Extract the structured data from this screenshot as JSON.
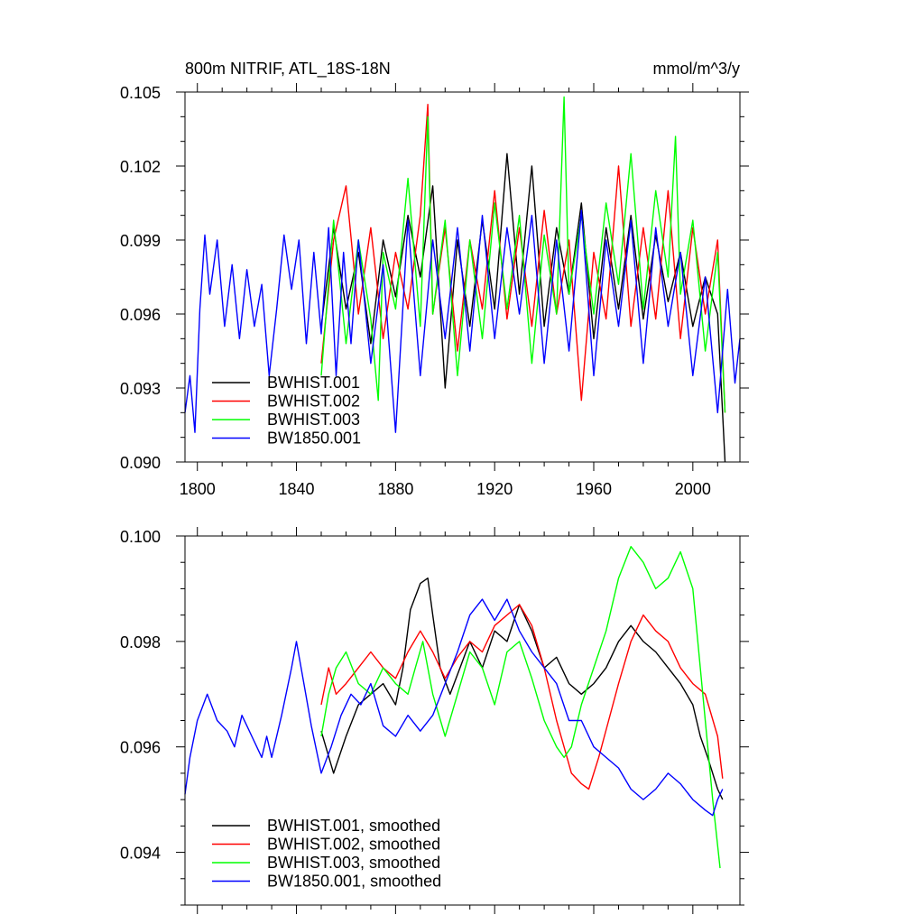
{
  "chart_data": [
    {
      "type": "line",
      "title": "800m NITRIF, ATL_18S-18N",
      "units": "mmol/m^3/y",
      "xlabel": "",
      "ylabel": "",
      "xlim": [
        1795,
        2019
      ],
      "ylim": [
        0.09,
        0.105
      ],
      "x_ticks": [
        "1800",
        "1840",
        "1880",
        "1920",
        "1960",
        "2000"
      ],
      "y_ticks": [
        "0.090",
        "0.093",
        "0.096",
        "0.099",
        "0.102",
        "0.105"
      ],
      "legend_position": "bottom-left",
      "series": [
        {
          "name": "BWHIST.001",
          "color": "#000000",
          "x": [
            1850,
            1855,
            1860,
            1865,
            1870,
            1875,
            1880,
            1885,
            1890,
            1895,
            1900,
            1905,
            1910,
            1915,
            1920,
            1925,
            1930,
            1935,
            1940,
            1945,
            1950,
            1955,
            1960,
            1965,
            1970,
            1975,
            1980,
            1985,
            1990,
            1995,
            2000,
            2005,
            2010,
            2013
          ],
          "values": [
            0.0955,
            0.0995,
            0.0962,
            0.0985,
            0.0948,
            0.099,
            0.0967,
            0.1,
            0.0975,
            0.1012,
            0.093,
            0.099,
            0.0955,
            0.0998,
            0.0962,
            0.1025,
            0.0968,
            0.102,
            0.0955,
            0.0995,
            0.0968,
            0.1005,
            0.095,
            0.0995,
            0.0962,
            0.1,
            0.0958,
            0.0992,
            0.0965,
            0.0985,
            0.0955,
            0.0975,
            0.096,
            0.09
          ]
        },
        {
          "name": "BWHIST.002",
          "color": "#ff0000",
          "x": [
            1850,
            1855,
            1860,
            1865,
            1870,
            1875,
            1880,
            1885,
            1890,
            1893,
            1895,
            1900,
            1905,
            1910,
            1915,
            1920,
            1925,
            1930,
            1935,
            1940,
            1945,
            1950,
            1955,
            1960,
            1965,
            1970,
            1975,
            1980,
            1985,
            1990,
            1995,
            2000,
            2005,
            2010,
            2013
          ],
          "values": [
            0.094,
            0.099,
            0.1012,
            0.096,
            0.0995,
            0.095,
            0.0985,
            0.0962,
            0.1,
            0.1045,
            0.096,
            0.0995,
            0.0945,
            0.099,
            0.0962,
            0.101,
            0.0958,
            0.0995,
            0.0955,
            0.1002,
            0.096,
            0.099,
            0.0925,
            0.0985,
            0.0958,
            0.102,
            0.0955,
            0.0995,
            0.0958,
            0.101,
            0.095,
            0.0995,
            0.096,
            0.099,
            0.092
          ]
        },
        {
          "name": "BWHIST.003",
          "color": "#00ff00",
          "x": [
            1850,
            1855,
            1860,
            1865,
            1870,
            1873,
            1875,
            1880,
            1885,
            1890,
            1893,
            1895,
            1900,
            1905,
            1910,
            1915,
            1920,
            1925,
            1930,
            1935,
            1940,
            1945,
            1948,
            1950,
            1955,
            1960,
            1965,
            1970,
            1975,
            1980,
            1985,
            1990,
            1993,
            1995,
            2000,
            2005,
            2010,
            2013
          ],
          "values": [
            0.0935,
            0.0998,
            0.0948,
            0.099,
            0.0958,
            0.0925,
            0.0985,
            0.0962,
            0.1015,
            0.0955,
            0.104,
            0.096,
            0.0998,
            0.0935,
            0.099,
            0.095,
            0.1005,
            0.0962,
            0.1,
            0.094,
            0.0992,
            0.096,
            0.1048,
            0.0968,
            0.1,
            0.096,
            0.1005,
            0.0972,
            0.1025,
            0.0962,
            0.101,
            0.0975,
            0.1032,
            0.0968,
            0.0998,
            0.0945,
            0.0985,
            0.092
          ]
        },
        {
          "name": "BW1850.001",
          "color": "#0000ff",
          "x": [
            1795,
            1797,
            1799,
            1801,
            1803,
            1805,
            1808,
            1811,
            1814,
            1817,
            1820,
            1823,
            1826,
            1829,
            1832,
            1835,
            1838,
            1841,
            1844,
            1847,
            1850,
            1853,
            1856,
            1859,
            1862,
            1865,
            1870,
            1875,
            1880,
            1885,
            1890,
            1895,
            1900,
            1905,
            1910,
            1915,
            1920,
            1925,
            1930,
            1935,
            1940,
            1945,
            1950,
            1955,
            1960,
            1965,
            1970,
            1975,
            1980,
            1985,
            1990,
            1995,
            2000,
            2005,
            2010,
            2014,
            2017,
            2019
          ],
          "values": [
            0.092,
            0.0935,
            0.0912,
            0.0962,
            0.0992,
            0.0968,
            0.099,
            0.0955,
            0.098,
            0.095,
            0.0978,
            0.0955,
            0.0972,
            0.0935,
            0.0962,
            0.0992,
            0.097,
            0.099,
            0.0948,
            0.0985,
            0.0952,
            0.0995,
            0.0935,
            0.0985,
            0.0948,
            0.099,
            0.094,
            0.098,
            0.0912,
            0.0998,
            0.0935,
            0.099,
            0.095,
            0.0995,
            0.0945,
            0.1,
            0.095,
            0.0995,
            0.096,
            0.1,
            0.094,
            0.099,
            0.0945,
            0.1002,
            0.0935,
            0.099,
            0.0955,
            0.0998,
            0.094,
            0.0995,
            0.0955,
            0.0985,
            0.0935,
            0.0975,
            0.092,
            0.097,
            0.0932,
            0.095
          ]
        }
      ]
    },
    {
      "type": "line",
      "title": "",
      "xlabel": "",
      "ylabel": "",
      "xlim": [
        1795,
        2019
      ],
      "ylim": [
        0.093,
        0.1
      ],
      "x_ticks": [
        "",
        "",
        "",
        "",
        "",
        ""
      ],
      "y_ticks": [
        "0.094",
        "0.096",
        "0.098",
        "0.100"
      ],
      "legend_position": "bottom-left",
      "series": [
        {
          "name": "BWHIST.001, smoothed",
          "color": "#000000",
          "x": [
            1850,
            1855,
            1860,
            1865,
            1870,
            1875,
            1880,
            1883,
            1886,
            1890,
            1893,
            1895,
            1898,
            1902,
            1906,
            1910,
            1915,
            1920,
            1925,
            1930,
            1935,
            1940,
            1945,
            1950,
            1955,
            1960,
            1965,
            1970,
            1975,
            1980,
            1985,
            1990,
            1995,
            2000,
            2003,
            2006,
            2010,
            2012
          ],
          "values": [
            0.0963,
            0.0955,
            0.0962,
            0.0968,
            0.097,
            0.0972,
            0.0968,
            0.0975,
            0.0986,
            0.0991,
            0.0992,
            0.0985,
            0.0975,
            0.097,
            0.0975,
            0.098,
            0.0975,
            0.0982,
            0.098,
            0.0987,
            0.0982,
            0.0975,
            0.0977,
            0.0972,
            0.097,
            0.0972,
            0.0975,
            0.098,
            0.0983,
            0.098,
            0.0978,
            0.0975,
            0.0972,
            0.0968,
            0.0962,
            0.0958,
            0.0952,
            0.095
          ]
        },
        {
          "name": "BWHIST.002, smoothed",
          "color": "#ff0000",
          "x": [
            1850,
            1853,
            1856,
            1860,
            1865,
            1870,
            1875,
            1880,
            1885,
            1890,
            1895,
            1900,
            1905,
            1910,
            1915,
            1920,
            1925,
            1930,
            1935,
            1940,
            1945,
            1948,
            1951,
            1955,
            1958,
            1962,
            1966,
            1970,
            1975,
            1980,
            1985,
            1990,
            1995,
            2000,
            2005,
            2010,
            2012
          ],
          "values": [
            0.0968,
            0.0975,
            0.097,
            0.0972,
            0.0975,
            0.0978,
            0.0975,
            0.0973,
            0.0978,
            0.0982,
            0.0978,
            0.0973,
            0.0977,
            0.098,
            0.0978,
            0.0983,
            0.0985,
            0.0987,
            0.0983,
            0.0975,
            0.0965,
            0.096,
            0.0955,
            0.0953,
            0.0952,
            0.0958,
            0.0965,
            0.0972,
            0.098,
            0.0985,
            0.0982,
            0.098,
            0.0975,
            0.0972,
            0.097,
            0.0962,
            0.0954
          ]
        },
        {
          "name": "BWHIST.003, smoothed",
          "color": "#00ff00",
          "x": [
            1850,
            1853,
            1856,
            1860,
            1865,
            1870,
            1875,
            1880,
            1885,
            1888,
            1891,
            1895,
            1900,
            1905,
            1910,
            1915,
            1920,
            1925,
            1930,
            1935,
            1940,
            1945,
            1948,
            1951,
            1955,
            1960,
            1965,
            1970,
            1975,
            1980,
            1985,
            1990,
            1995,
            2000,
            2005,
            2008,
            2011
          ],
          "values": [
            0.0962,
            0.097,
            0.0975,
            0.0978,
            0.0972,
            0.097,
            0.0975,
            0.0972,
            0.097,
            0.0975,
            0.098,
            0.097,
            0.0962,
            0.097,
            0.0978,
            0.0975,
            0.0968,
            0.0978,
            0.098,
            0.0973,
            0.0965,
            0.096,
            0.0958,
            0.096,
            0.0968,
            0.0975,
            0.0982,
            0.0992,
            0.0998,
            0.0995,
            0.099,
            0.0992,
            0.0997,
            0.099,
            0.0965,
            0.095,
            0.0937
          ]
        },
        {
          "name": "BW1850.001, smoothed",
          "color": "#0000ff",
          "x": [
            1795,
            1797,
            1800,
            1804,
            1808,
            1812,
            1815,
            1818,
            1822,
            1826,
            1828,
            1830,
            1834,
            1838,
            1840,
            1843,
            1846,
            1850,
            1854,
            1858,
            1862,
            1866,
            1870,
            1875,
            1880,
            1885,
            1890,
            1895,
            1900,
            1905,
            1910,
            1915,
            1920,
            1925,
            1930,
            1935,
            1940,
            1945,
            1950,
            1955,
            1960,
            1965,
            1970,
            1975,
            1980,
            1985,
            1990,
            1995,
            2000,
            2005,
            2008,
            2010,
            2012
          ],
          "values": [
            0.0951,
            0.0958,
            0.0965,
            0.097,
            0.0965,
            0.0963,
            0.096,
            0.0966,
            0.0962,
            0.0958,
            0.0962,
            0.0958,
            0.0966,
            0.0975,
            0.098,
            0.0972,
            0.0964,
            0.0955,
            0.096,
            0.0966,
            0.097,
            0.0968,
            0.0972,
            0.0964,
            0.0962,
            0.0966,
            0.0963,
            0.0966,
            0.0972,
            0.0978,
            0.0985,
            0.0988,
            0.0984,
            0.0988,
            0.0982,
            0.0978,
            0.0975,
            0.0972,
            0.0965,
            0.0965,
            0.096,
            0.0958,
            0.0956,
            0.0952,
            0.095,
            0.0952,
            0.0955,
            0.0953,
            0.095,
            0.0948,
            0.0947,
            0.095,
            0.0952
          ]
        }
      ]
    }
  ]
}
